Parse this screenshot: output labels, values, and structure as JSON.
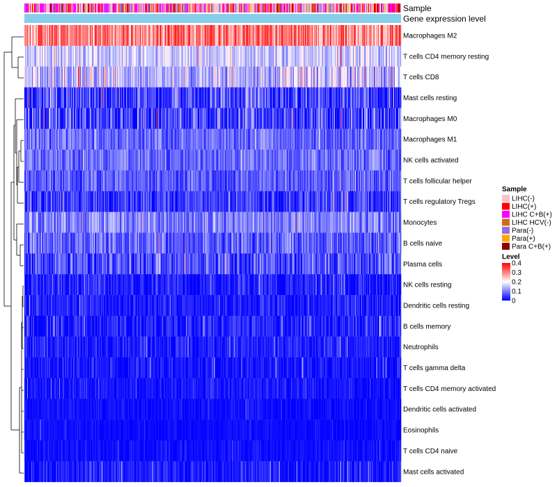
{
  "chart_data": {
    "type": "heatmap",
    "annotation_rows": [
      "Sample",
      "Gene expression level"
    ],
    "rows": [
      {
        "label": "Macrophages M2",
        "mean": 0.3,
        "spread": 0.1
      },
      {
        "label": "T cells CD4 memory resting",
        "mean": 0.16,
        "spread": 0.07
      },
      {
        "label": "T cells CD8",
        "mean": 0.15,
        "spread": 0.1
      },
      {
        "label": "Mast cells resting",
        "mean": 0.05,
        "spread": 0.1
      },
      {
        "label": "Macrophages M0",
        "mean": 0.04,
        "spread": 0.12
      },
      {
        "label": "Macrophages M1",
        "mean": 0.08,
        "spread": 0.06
      },
      {
        "label": "NK cells activated",
        "mean": 0.08,
        "spread": 0.06
      },
      {
        "label": "T cells follicular helper",
        "mean": 0.07,
        "spread": 0.06
      },
      {
        "label": "T cells regulatory  Tregs",
        "mean": 0.04,
        "spread": 0.07
      },
      {
        "label": "Monocytes",
        "mean": 0.1,
        "spread": 0.07
      },
      {
        "label": "B cells naive",
        "mean": 0.07,
        "spread": 0.07
      },
      {
        "label": "Plasma cells",
        "mean": 0.06,
        "spread": 0.08
      },
      {
        "label": "NK cells resting",
        "mean": 0.02,
        "spread": 0.06
      },
      {
        "label": "Dendritic cells resting",
        "mean": 0.02,
        "spread": 0.05
      },
      {
        "label": "B cells memory",
        "mean": 0.02,
        "spread": 0.06
      },
      {
        "label": "Neutrophils",
        "mean": 0.02,
        "spread": 0.05
      },
      {
        "label": "T cells gamma delta",
        "mean": 0.01,
        "spread": 0.05
      },
      {
        "label": "T cells CD4 memory activated",
        "mean": 0.01,
        "spread": 0.04
      },
      {
        "label": "Dendritic cells activated",
        "mean": 0.005,
        "spread": 0.03
      },
      {
        "label": "Eosinophils",
        "mean": 0.005,
        "spread": 0.02
      },
      {
        "label": "T cells CD4 naive",
        "mean": 0.005,
        "spread": 0.03
      },
      {
        "label": "Mast cells activated",
        "mean": 0.01,
        "spread": 0.06
      }
    ],
    "sample_legend": {
      "title": "Sample",
      "entries": [
        {
          "label": "LIHC(-)",
          "color": "#ffc0cb"
        },
        {
          "label": "LIHC(+)",
          "color": "#ff0000"
        },
        {
          "label": "LIHC C+B(+)",
          "color": "#ff00ff"
        },
        {
          "label": "LIHC HCV(-)",
          "color": "#d2691e"
        },
        {
          "label": "Para(-)",
          "color": "#9370db"
        },
        {
          "label": "Para(+)",
          "color": "#ffa500"
        },
        {
          "label": "Para C+B(+)",
          "color": "#8b0000"
        }
      ],
      "weights": [
        0.38,
        0.14,
        0.22,
        0.04,
        0.13,
        0.05,
        0.04
      ]
    },
    "level_legend": {
      "title": "Level",
      "ticks": [
        "0.4",
        "0.3",
        "0.2",
        "0.1",
        "0"
      ],
      "tick_values": [
        0.4,
        0.3,
        0.2,
        0.1,
        0
      ],
      "range": [
        0,
        0.4
      ]
    },
    "expression_bar_color": "#87ceeb",
    "colormap": {
      "low": "#0000ff",
      "mid": "#ffffff",
      "high": "#ff0000",
      "mid_value": 0.2
    },
    "n_samples": 540
  }
}
